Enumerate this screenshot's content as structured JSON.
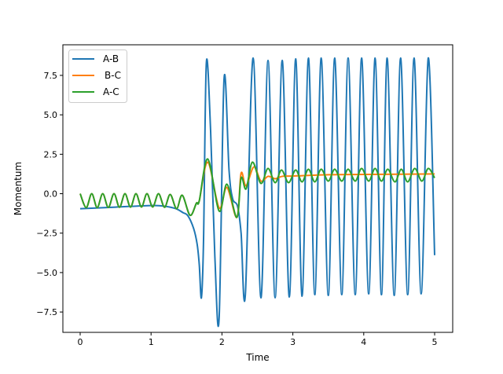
{
  "chart_data": {
    "type": "line",
    "title": "",
    "xlabel": "Time",
    "ylabel": "Momentum",
    "xlim": [
      -0.244,
      5.255
    ],
    "ylim": [
      -8.79,
      9.44
    ],
    "xticks": [
      0,
      1,
      2,
      3,
      4,
      5
    ],
    "xtick_labels": [
      "0",
      "1",
      "2",
      "3",
      "4",
      "5"
    ],
    "yticks": [
      -7.5,
      -5.0,
      -2.5,
      0.0,
      2.5,
      5.0,
      7.5
    ],
    "ytick_labels": [
      "−7.5",
      "−5.0",
      "−2.5",
      "0.0",
      "2.5",
      "5.0",
      "7.5"
    ],
    "grid": false,
    "legend_position": "top-left",
    "series": [
      {
        "name": "A-B",
        "color": "#1f77b4",
        "points": [
          [
            0,
            -0.95
          ],
          [
            0.5,
            -0.85
          ],
          [
            1.0,
            -0.75
          ],
          [
            1.2,
            -0.8
          ],
          [
            1.35,
            -0.95
          ],
          [
            1.45,
            -1.2
          ],
          [
            1.52,
            -1.4
          ],
          [
            1.6,
            -2.2
          ],
          [
            1.65,
            -3.2
          ],
          [
            1.68,
            -4.5
          ],
          [
            1.71,
            -6.6
          ],
          [
            1.74,
            -3.0
          ],
          [
            1.78,
            8.3
          ],
          [
            1.84,
            4.0
          ],
          [
            1.9,
            -4.0
          ],
          [
            1.96,
            -7.9
          ],
          [
            2.03,
            7.3
          ],
          [
            2.1,
            1.5
          ],
          [
            2.15,
            -0.3
          ],
          [
            2.22,
            -0.8
          ],
          [
            2.27,
            -2.5
          ],
          [
            2.33,
            -6.4
          ],
          [
            2.44,
            8.6
          ],
          [
            2.55,
            -6.6
          ],
          [
            2.65,
            8.45
          ],
          [
            2.75,
            -6.6
          ],
          [
            2.85,
            8.45
          ],
          [
            2.95,
            -6.55
          ],
          [
            3.04,
            8.55
          ],
          [
            3.13,
            -6.5
          ],
          [
            3.22,
            8.6
          ],
          [
            3.31,
            -6.4
          ],
          [
            3.4,
            8.6
          ],
          [
            3.5,
            -6.45
          ],
          [
            3.59,
            8.6
          ],
          [
            3.69,
            -6.4
          ],
          [
            3.78,
            8.6
          ],
          [
            3.88,
            -6.4
          ],
          [
            3.97,
            8.6
          ],
          [
            4.07,
            -6.35
          ],
          [
            4.16,
            8.6
          ],
          [
            4.25,
            -6.4
          ],
          [
            4.33,
            8.6
          ],
          [
            4.43,
            -6.45
          ],
          [
            4.52,
            8.6
          ],
          [
            4.62,
            -6.4
          ],
          [
            4.71,
            8.6
          ],
          [
            4.81,
            -6.35
          ],
          [
            4.91,
            8.6
          ],
          [
            5.0,
            -3.9
          ]
        ]
      },
      {
        "name": "B-C",
        "color": "#ff7f0e",
        "points": [
          [
            0,
            0
          ],
          [
            0.085,
            -0.88
          ],
          [
            0.163,
            0
          ],
          [
            0.24,
            -0.88
          ],
          [
            0.318,
            0
          ],
          [
            0.397,
            -0.87
          ],
          [
            0.477,
            0
          ],
          [
            0.555,
            -0.86
          ],
          [
            0.632,
            0
          ],
          [
            0.71,
            -0.85
          ],
          [
            0.787,
            0
          ],
          [
            0.865,
            -0.84
          ],
          [
            0.942,
            0
          ],
          [
            1.023,
            -0.84
          ],
          [
            1.105,
            0
          ],
          [
            1.19,
            -0.86
          ],
          [
            1.27,
            -0.05
          ],
          [
            1.36,
            -0.95
          ],
          [
            1.44,
            -0.1
          ],
          [
            1.55,
            -1.37
          ],
          [
            1.64,
            -0.6
          ],
          [
            1.68,
            -0.45
          ],
          [
            1.8,
            2.0
          ],
          [
            1.96,
            -0.9
          ],
          [
            2.07,
            0.4
          ],
          [
            2.21,
            -1.5
          ],
          [
            2.27,
            1.3
          ],
          [
            2.34,
            0.5
          ],
          [
            2.45,
            1.7
          ],
          [
            2.55,
            0.8
          ],
          [
            2.65,
            1.1
          ],
          [
            2.75,
            0.95
          ],
          [
            2.85,
            1.1
          ],
          [
            3.0,
            1.12
          ],
          [
            3.5,
            1.2
          ],
          [
            4.0,
            1.22
          ],
          [
            5.0,
            1.25
          ]
        ]
      },
      {
        "name": "A-C",
        "color": "#2ca02c",
        "points": [
          [
            0,
            0
          ],
          [
            0.085,
            -0.88
          ],
          [
            0.163,
            0
          ],
          [
            0.24,
            -0.88
          ],
          [
            0.318,
            0
          ],
          [
            0.397,
            -0.87
          ],
          [
            0.477,
            0
          ],
          [
            0.555,
            -0.86
          ],
          [
            0.632,
            0
          ],
          [
            0.71,
            -0.85
          ],
          [
            0.787,
            0
          ],
          [
            0.865,
            -0.84
          ],
          [
            0.942,
            0
          ],
          [
            1.023,
            -0.84
          ],
          [
            1.105,
            0
          ],
          [
            1.19,
            -0.86
          ],
          [
            1.27,
            -0.05
          ],
          [
            1.36,
            -0.95
          ],
          [
            1.44,
            -0.1
          ],
          [
            1.55,
            -1.37
          ],
          [
            1.64,
            -0.6
          ],
          [
            1.68,
            -0.45
          ],
          [
            1.8,
            2.2
          ],
          [
            1.96,
            -1.1
          ],
          [
            2.07,
            0.6
          ],
          [
            2.21,
            -1.5
          ],
          [
            2.27,
            1.0
          ],
          [
            2.34,
            0.3
          ],
          [
            2.43,
            2.0
          ],
          [
            2.55,
            0.65
          ],
          [
            2.65,
            1.6
          ],
          [
            2.75,
            0.7
          ],
          [
            2.84,
            1.5
          ],
          [
            2.94,
            0.7
          ],
          [
            3.04,
            1.5
          ],
          [
            3.13,
            0.75
          ],
          [
            3.22,
            1.55
          ],
          [
            3.31,
            0.75
          ],
          [
            3.4,
            1.55
          ],
          [
            3.5,
            0.8
          ],
          [
            3.59,
            1.55
          ],
          [
            3.69,
            0.8
          ],
          [
            3.78,
            1.55
          ],
          [
            3.88,
            0.8
          ],
          [
            3.97,
            1.6
          ],
          [
            4.07,
            0.8
          ],
          [
            4.16,
            1.6
          ],
          [
            4.25,
            0.8
          ],
          [
            4.34,
            1.55
          ],
          [
            4.44,
            0.75
          ],
          [
            4.53,
            1.55
          ],
          [
            4.62,
            0.75
          ],
          [
            4.72,
            1.6
          ],
          [
            4.82,
            0.8
          ],
          [
            4.91,
            1.6
          ],
          [
            5.0,
            1.0
          ]
        ]
      }
    ]
  }
}
